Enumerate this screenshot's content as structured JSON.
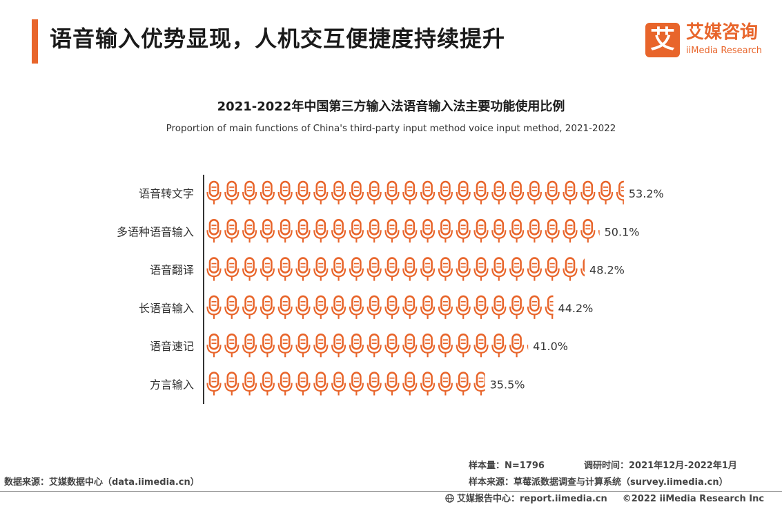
{
  "header": {
    "title": "语音输入优势显现，人机交互便捷度持续提升",
    "logo_mark": "艾",
    "logo_cn": "艾媒咨询",
    "logo_en": "iiMedia Research"
  },
  "colors": {
    "accent": "#e8652b",
    "axis": "#333333",
    "label": "#333333"
  },
  "chart_data": {
    "type": "bar",
    "title": "2021-2022年中国第三方输入法语音输入法主要功能使用比例",
    "subtitle": "Proportion of main functions of China's third-party input method voice input method, 2021-2022",
    "categories": [
      "语音转文字",
      "多语种语音输入",
      "语音翻译",
      "长语音输入",
      "语音速记",
      "方言输入"
    ],
    "values": [
      53.2,
      50.1,
      48.2,
      44.2,
      41.0,
      35.5
    ],
    "value_labels": [
      "53.2%",
      "50.1%",
      "48.2%",
      "44.2%",
      "41.0%",
      "35.5%"
    ],
    "unit": "%",
    "orientation": "horizontal",
    "mark_icon": "microphone-icon",
    "xlabel": "",
    "ylabel": ""
  },
  "footer": {
    "sample_size": "样本量：N=1796",
    "survey_time": "调研时间：2021年12月-2022年1月",
    "data_source": "数据来源：艾媒数据中心（data.iimedia.cn）",
    "sample_source": "样本来源：草莓派数据调查与计算系统（survey.iimedia.cn）",
    "report_center": "艾媒报告中心：report.iimedia.cn",
    "copyright": "©2022  iiMedia Research Inc"
  }
}
